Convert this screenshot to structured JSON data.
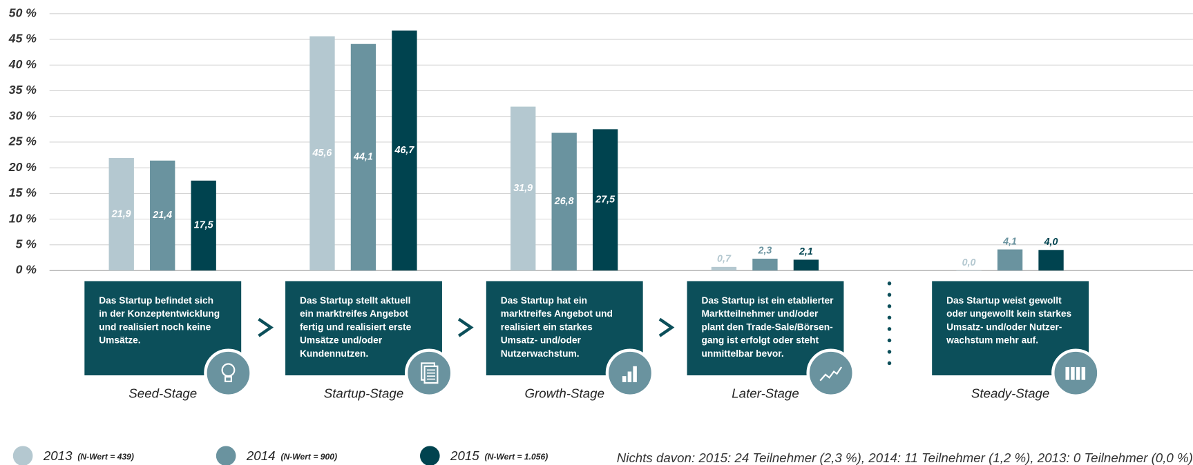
{
  "chart_data": {
    "type": "bar",
    "categories": [
      "Seed-Stage",
      "Startup-Stage",
      "Growth-Stage",
      "Later-Stage",
      "Steady-Stage"
    ],
    "descriptions": [
      [
        "Das Startup befindet sich",
        "in der Konzeptentwicklung",
        "und realisiert noch keine",
        "Umsätze."
      ],
      [
        "Das Startup stellt aktuell",
        "ein marktreifes Angebot",
        "fertig und realisiert erste",
        "Umsätze und/oder",
        "Kundennutzen."
      ],
      [
        "Das Startup hat ein",
        "marktreifes Angebot und",
        "realisiert ein starkes",
        "Umsatz- und/oder",
        "Nutzerwachstum."
      ],
      [
        "Das Startup ist ein etablierter",
        "Marktteilnehmer und/oder",
        "plant den Trade-Sale/Börsen-",
        "gang ist erfolgt oder steht",
        "unmittelbar bevor."
      ],
      [
        "Das Startup weist gewollt",
        "oder ungewollt kein starkes",
        "Umsatz- und/oder Nutzer-",
        "wachstum mehr auf."
      ]
    ],
    "series": [
      {
        "name": "2013",
        "note": "(N-Wert = 439)",
        "color": "#b4c8d0",
        "values": [
          21.9,
          45.6,
          31.9,
          0.7,
          0.0
        ],
        "value_labels": [
          "21,9",
          "45,6",
          "31,9",
          "0,7",
          "0,0"
        ]
      },
      {
        "name": "2014",
        "note": "(N-Wert = 900)",
        "color": "#6a939f",
        "values": [
          21.4,
          44.1,
          26.8,
          2.3,
          4.1
        ],
        "value_labels": [
          "21,4",
          "44,1",
          "26,8",
          "2,3",
          "4,1"
        ]
      },
      {
        "name": "2015",
        "note": "(N-Wert = 1.056)",
        "color": "#00434f",
        "values": [
          17.5,
          46.7,
          27.5,
          2.1,
          4.0
        ],
        "value_labels": [
          "17,5",
          "46,7",
          "27,5",
          "2,1",
          "4,0"
        ]
      }
    ],
    "ylim": [
      0,
      50
    ],
    "yticks": [
      {
        "value": 0,
        "label": "0 %"
      },
      {
        "value": 5,
        "label": "5 %"
      },
      {
        "value": 10,
        "label": "10 %"
      },
      {
        "value": 15,
        "label": "15 %"
      },
      {
        "value": 20,
        "label": "20 %"
      },
      {
        "value": 25,
        "label": "25 %"
      },
      {
        "value": 30,
        "label": "30 %"
      },
      {
        "value": 35,
        "label": "35 %"
      },
      {
        "value": 40,
        "label": "40 %"
      },
      {
        "value": 45,
        "label": "45 %"
      },
      {
        "value": 50,
        "label": "50 %"
      }
    ],
    "grid": true,
    "footnote": "Nichts davon: 2015: 24 Teilnehmer (2,3 %), 2014: 11 Teilnehmer (1,2 %), 2013: 0 Teilnehmer (0,0 %)"
  }
}
